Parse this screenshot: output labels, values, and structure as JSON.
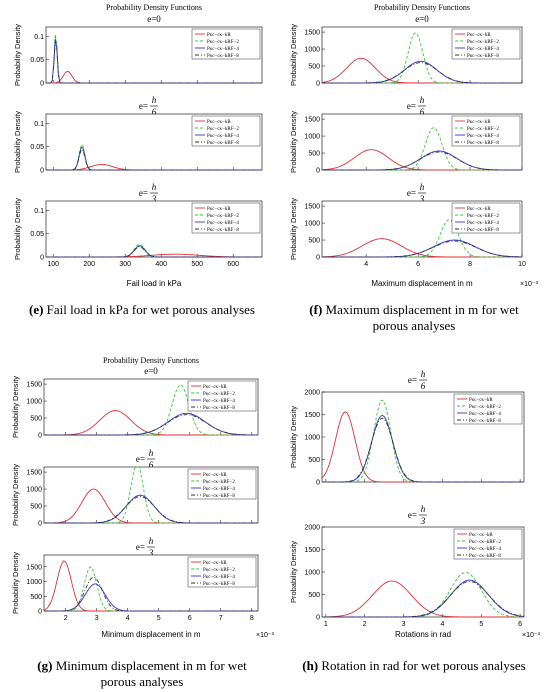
{
  "captions": [
    {
      "letter": "(e)",
      "text": "Fail load in kPa for wet porous analyses"
    },
    {
      "letter": "(f)",
      "text": "Maximum displacement in m for wet porous analyses"
    },
    {
      "letter": "(g)",
      "text": "Minimum displacement in m for wet porous analyses"
    },
    {
      "letter": "(h)",
      "text": "Rotation in rad for wet porous analyses"
    }
  ],
  "chart_data": [
    {
      "id": "e",
      "type": "line",
      "title": "Probability Density Functions",
      "xlabel": "Fail load in kPa",
      "ylabel": "Probability Density",
      "x_exponent": "",
      "xlim": [
        80,
        680
      ],
      "xticks": [
        100,
        200,
        300,
        400,
        500,
        600
      ],
      "subplots": [
        {
          "e_label": "e=0",
          "ylim": [
            0,
            0.12
          ],
          "yticks": [
            0,
            0.05,
            0.1
          ],
          "ytick_labels": [
            "0",
            "0.05",
            "0.1"
          ],
          "series": [
            {
              "name": "Pκc−cκ−kR",
              "color": "#e03030",
              "dash": "solid",
              "mean": 140,
              "sd": 12,
              "peak": 0.025
            },
            {
              "name": "Pκc−cκ−kRF−2",
              "color": "#33cc33",
              "dash": "dashed",
              "mean": 107,
              "sd": 4,
              "peak": 0.11
            },
            {
              "name": "Pκc−cκ−kRF−4",
              "color": "#3333cc",
              "dash": "solid",
              "mean": 107,
              "sd": 4,
              "peak": 0.1
            },
            {
              "name": "Pκc−cκ−kRF−8",
              "color": "#333333",
              "dash": "dashdot",
              "mean": 107,
              "sd": 4,
              "peak": 0.095
            }
          ]
        },
        {
          "e_label": "e=h/6",
          "ylim": [
            0,
            0.12
          ],
          "yticks": [
            0,
            0.05,
            0.1
          ],
          "ytick_labels": [
            "0",
            "0.05",
            "0.1"
          ],
          "series": [
            {
              "name": "Pκc−cκ−kR",
              "color": "#e03030",
              "dash": "solid",
              "mean": 235,
              "sd": 30,
              "peak": 0.012
            },
            {
              "name": "Pκc−cκ−kRF−2",
              "color": "#33cc33",
              "dash": "dashed",
              "mean": 180,
              "sd": 8,
              "peak": 0.055
            },
            {
              "name": "Pκc−cκ−kRF−4",
              "color": "#3333cc",
              "dash": "solid",
              "mean": 180,
              "sd": 8,
              "peak": 0.05
            },
            {
              "name": "Pκc−cκ−kRF−8",
              "color": "#333333",
              "dash": "dashdot",
              "mean": 180,
              "sd": 8,
              "peak": 0.045
            }
          ]
        },
        {
          "e_label": "e=h/3",
          "ylim": [
            0,
            0.12
          ],
          "yticks": [
            0,
            0.05,
            0.1
          ],
          "ytick_labels": [
            "0",
            "0.05",
            "0.1"
          ],
          "series": [
            {
              "name": "Pκc−cκ−kR",
              "color": "#e03030",
              "dash": "solid",
              "mean": 440,
              "sd": 65,
              "peak": 0.006
            },
            {
              "name": "Pκc−cκ−kRF−2",
              "color": "#33cc33",
              "dash": "dashed",
              "mean": 340,
              "sd": 15,
              "peak": 0.027
            },
            {
              "name": "Pκc−cκ−kRF−4",
              "color": "#3333cc",
              "dash": "solid",
              "mean": 340,
              "sd": 15,
              "peak": 0.024
            },
            {
              "name": "Pκc−cκ−kRF−8",
              "color": "#333333",
              "dash": "dashdot",
              "mean": 340,
              "sd": 15,
              "peak": 0.022
            }
          ]
        }
      ]
    },
    {
      "id": "f",
      "type": "line",
      "title": "Probability Density Functions",
      "xlabel": "Maximum displacement in m",
      "ylabel": "Probability Density",
      "x_exponent": "×10⁻³",
      "xlim": [
        2.3,
        10
      ],
      "xticks": [
        4,
        6,
        8,
        10
      ],
      "subplots": [
        {
          "e_label": "e=0",
          "ylim": [
            0,
            1650
          ],
          "yticks": [
            0,
            500,
            1000,
            1500
          ],
          "ytick_labels": [
            "0",
            "500",
            "1000",
            "1500"
          ],
          "series": [
            {
              "name": "Pκc−cκ−kR",
              "color": "#e03030",
              "dash": "solid",
              "mean": 3.8,
              "sd": 0.55,
              "peak": 730
            },
            {
              "name": "Pκc−cκ−kRF−2",
              "color": "#33cc33",
              "dash": "dashed",
              "mean": 5.9,
              "sd": 0.28,
              "peak": 1480
            },
            {
              "name": "Pκc−cκ−kRF−4",
              "color": "#3333cc",
              "dash": "solid",
              "mean": 6.1,
              "sd": 0.62,
              "peak": 640
            },
            {
              "name": "Pκc−cκ−kRF−8",
              "color": "#333333",
              "dash": "dashdot",
              "mean": 6.1,
              "sd": 0.65,
              "peak": 600
            }
          ]
        },
        {
          "e_label": "e=h/6",
          "ylim": [
            0,
            1650
          ],
          "yticks": [
            0,
            500,
            1000,
            1500
          ],
          "ytick_labels": [
            "0",
            "500",
            "1000",
            "1500"
          ],
          "series": [
            {
              "name": "Pκc−cκ−kR",
              "color": "#e03030",
              "dash": "solid",
              "mean": 4.2,
              "sd": 0.65,
              "peak": 600
            },
            {
              "name": "Pκc−cκ−kRF−2",
              "color": "#33cc33",
              "dash": "dashed",
              "mean": 6.6,
              "sd": 0.32,
              "peak": 1250
            },
            {
              "name": "Pκc−cκ−kRF−4",
              "color": "#3333cc",
              "dash": "solid",
              "mean": 6.8,
              "sd": 0.7,
              "peak": 560
            },
            {
              "name": "Pκc−cκ−kRF−8",
              "color": "#333333",
              "dash": "dashdot",
              "mean": 6.8,
              "sd": 0.72,
              "peak": 530
            }
          ]
        },
        {
          "e_label": "e=h/3",
          "ylim": [
            0,
            1650
          ],
          "yticks": [
            0,
            500,
            1000,
            1500
          ],
          "ytick_labels": [
            "0",
            "500",
            "1000",
            "1500"
          ],
          "series": [
            {
              "name": "Pκc−cκ−kR",
              "color": "#e03030",
              "dash": "solid",
              "mean": 4.6,
              "sd": 0.75,
              "peak": 540
            },
            {
              "name": "Pκc−cκ−kRF−2",
              "color": "#33cc33",
              "dash": "dashed",
              "mean": 7.2,
              "sd": 0.35,
              "peak": 1100
            },
            {
              "name": "Pκc−cκ−kRF−4",
              "color": "#3333cc",
              "dash": "solid",
              "mean": 7.4,
              "sd": 0.8,
              "peak": 500
            },
            {
              "name": "Pκc−cκ−kRF−8",
              "color": "#333333",
              "dash": "dashdot",
              "mean": 7.4,
              "sd": 0.82,
              "peak": 470
            }
          ]
        }
      ]
    },
    {
      "id": "g",
      "type": "line",
      "title": "Probability Density Functions",
      "xlabel": "Minimum displacement in m",
      "ylabel": "Probability Density",
      "x_exponent": "×10⁻³",
      "xlim": [
        1.3,
        8.2
      ],
      "xticks": [
        2,
        3,
        4,
        5,
        6,
        7,
        8
      ],
      "subplots": [
        {
          "e_label": "e=0",
          "ylim": [
            0,
            1650
          ],
          "yticks": [
            0,
            500,
            1000,
            1500
          ],
          "ytick_labels": [
            "0",
            "500",
            "1000",
            "1500"
          ],
          "series": [
            {
              "name": "Pκc−cκ−kR",
              "color": "#e03030",
              "dash": "solid",
              "mean": 3.6,
              "sd": 0.5,
              "peak": 720
            },
            {
              "name": "Pκc−cκ−kRF−2",
              "color": "#33cc33",
              "dash": "dashed",
              "mean": 5.7,
              "sd": 0.27,
              "peak": 1480
            },
            {
              "name": "Pκc−cκ−kRF−4",
              "color": "#3333cc",
              "dash": "solid",
              "mean": 5.9,
              "sd": 0.6,
              "peak": 640
            },
            {
              "name": "Pκc−cκ−kRF−8",
              "color": "#333333",
              "dash": "dashdot",
              "mean": 5.9,
              "sd": 0.62,
              "peak": 600
            }
          ]
        },
        {
          "e_label": "e=h/6",
          "ylim": [
            0,
            1650
          ],
          "yticks": [
            0,
            500,
            1000,
            1500
          ],
          "ytick_labels": [
            "0",
            "500",
            "1000",
            "1500"
          ],
          "series": [
            {
              "name": "Pκc−cκ−kR",
              "color": "#e03030",
              "dash": "solid",
              "mean": 2.9,
              "sd": 0.38,
              "peak": 1000
            },
            {
              "name": "Pκc−cκ−kRF−2",
              "color": "#33cc33",
              "dash": "dashed",
              "mean": 4.3,
              "sd": 0.2,
              "peak": 1750
            },
            {
              "name": "Pκc−cκ−kRF−4",
              "color": "#3333cc",
              "dash": "solid",
              "mean": 4.4,
              "sd": 0.45,
              "peak": 820
            },
            {
              "name": "Pκc−cκ−kRF−8",
              "color": "#333333",
              "dash": "dashdot",
              "mean": 4.4,
              "sd": 0.47,
              "peak": 780
            }
          ]
        },
        {
          "e_label": "e=h/3",
          "ylim": [
            0,
            1900
          ],
          "yticks": [
            0,
            500,
            1000,
            1500
          ],
          "ytick_labels": [
            "0",
            "500",
            "1000",
            "1500"
          ],
          "series": [
            {
              "name": "Pκc−cκ−kR",
              "color": "#e03030",
              "dash": "solid",
              "mean": 1.95,
              "sd": 0.23,
              "peak": 1700
            },
            {
              "name": "Pκc−cκ−kRF−2",
              "color": "#33cc33",
              "dash": "dashed",
              "mean": 2.8,
              "sd": 0.2,
              "peak": 1500
            },
            {
              "name": "Pκc−cκ−kRF−4",
              "color": "#3333cc",
              "dash": "solid",
              "mean": 2.95,
              "sd": 0.32,
              "peak": 920
            },
            {
              "name": "Pκc−cκ−kRF−8",
              "color": "#333333",
              "dash": "dashdot",
              "mean": 2.9,
              "sd": 0.28,
              "peak": 1150
            }
          ]
        }
      ]
    },
    {
      "id": "h",
      "type": "line",
      "title": "",
      "xlabel": "Rotations in rad",
      "ylabel": "Probability Density",
      "x_exponent": "×10⁻³",
      "xlim": [
        0.9,
        6.1
      ],
      "xticks": [
        1,
        2,
        3,
        4,
        5,
        6
      ],
      "subplots": [
        {
          "e_label": "e=h/6",
          "ylim": [
            0,
            2000
          ],
          "yticks": [
            0,
            500,
            1000,
            1500,
            2000
          ],
          "ytick_labels": [
            "0",
            "500",
            "1000",
            "1500",
            "2000"
          ],
          "series": [
            {
              "name": "Pκc−cκ−kR",
              "color": "#e03030",
              "dash": "solid",
              "mean": 1.5,
              "sd": 0.25,
              "peak": 1560
            },
            {
              "name": "Pκc−cκ−kRF−2",
              "color": "#33cc33",
              "dash": "dashed",
              "mean": 2.45,
              "sd": 0.22,
              "peak": 1820
            },
            {
              "name": "Pκc−cκ−kRF−4",
              "color": "#3333cc",
              "dash": "solid",
              "mean": 2.45,
              "sd": 0.27,
              "peak": 1480
            },
            {
              "name": "Pκc−cκ−kRF−8",
              "color": "#333333",
              "dash": "dashdot",
              "mean": 2.45,
              "sd": 0.28,
              "peak": 1420
            }
          ]
        },
        {
          "e_label": "e=h/3",
          "ylim": [
            0,
            2000
          ],
          "yticks": [
            0,
            500,
            1000,
            1500,
            2000
          ],
          "ytick_labels": [
            "0",
            "500",
            "1000",
            "1500",
            "2000"
          ],
          "series": [
            {
              "name": "Pκc−cκ−kR",
              "color": "#e03030",
              "dash": "solid",
              "mean": 2.7,
              "sd": 0.5,
              "peak": 800
            },
            {
              "name": "Pκc−cκ−kRF−2",
              "color": "#33cc33",
              "dash": "dashed",
              "mean": 4.6,
              "sd": 0.4,
              "peak": 990
            },
            {
              "name": "Pκc−cκ−kRF−4",
              "color": "#3333cc",
              "dash": "solid",
              "mean": 4.7,
              "sd": 0.48,
              "peak": 820
            },
            {
              "name": "Pκc−cκ−kRF−8",
              "color": "#333333",
              "dash": "dashdot",
              "mean": 4.7,
              "sd": 0.5,
              "peak": 790
            }
          ]
        }
      ]
    }
  ]
}
